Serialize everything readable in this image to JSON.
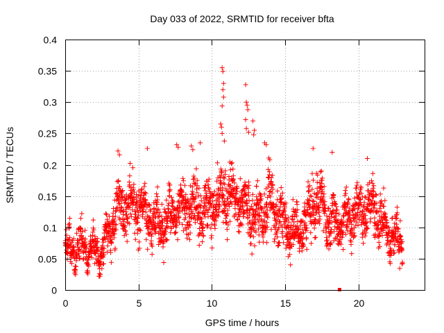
{
  "chart_data": {
    "type": "scatter",
    "title": "Day 033 of 2022, SRMTID for receiver bfta",
    "xlabel": "GPS time / hours",
    "ylabel": "SRMTID / TECUs",
    "xlim": [
      0,
      24.5
    ],
    "ylim": [
      0,
      0.4
    ],
    "xticks": [
      0,
      5,
      10,
      15,
      20
    ],
    "xtick_labels": [
      "0",
      "5",
      "10",
      "15",
      "20"
    ],
    "yticks": [
      0,
      0.05,
      0.1,
      0.15,
      0.2,
      0.25,
      0.3,
      0.35,
      0.4
    ],
    "ytick_labels": [
      "0",
      "0.05",
      "0.1",
      "0.15",
      "0.2",
      "0.25",
      "0.3",
      "0.35",
      "0.4"
    ],
    "grid": true,
    "marker": "plus",
    "series_color": "#ff0000",
    "trend_knots": {
      "x": [
        0,
        0.5,
        1,
        1.5,
        2,
        2.5,
        3,
        3.5,
        4,
        5,
        6,
        7,
        8,
        9,
        10,
        11,
        12,
        13,
        14,
        15,
        16,
        17,
        18,
        19,
        20,
        21,
        22,
        23
      ],
      "y": [
        0.065,
        0.065,
        0.07,
        0.065,
        0.06,
        0.065,
        0.09,
        0.125,
        0.13,
        0.135,
        0.105,
        0.115,
        0.13,
        0.125,
        0.135,
        0.155,
        0.14,
        0.115,
        0.14,
        0.1,
        0.09,
        0.15,
        0.11,
        0.11,
        0.125,
        0.135,
        0.09,
        0.07
      ]
    },
    "x_range_observed": [
      0,
      23
    ],
    "spikes": [
      {
        "x": 10.7,
        "y": 0.355
      },
      {
        "x": 10.75,
        "y": 0.349
      },
      {
        "x": 10.8,
        "y": 0.33
      },
      {
        "x": 10.75,
        "y": 0.32
      },
      {
        "x": 10.8,
        "y": 0.308
      },
      {
        "x": 10.7,
        "y": 0.294
      },
      {
        "x": 12.3,
        "y": 0.328
      },
      {
        "x": 12.35,
        "y": 0.3
      },
      {
        "x": 12.4,
        "y": 0.295
      },
      {
        "x": 12.45,
        "y": 0.288
      },
      {
        "x": 12.3,
        "y": 0.272
      },
      {
        "x": 12.35,
        "y": 0.258
      },
      {
        "x": 12.5,
        "y": 0.252
      },
      {
        "x": 10.6,
        "y": 0.265
      },
      {
        "x": 10.65,
        "y": 0.26
      },
      {
        "x": 10.7,
        "y": 0.25
      },
      {
        "x": 10.85,
        "y": 0.238
      },
      {
        "x": 12.8,
        "y": 0.27
      },
      {
        "x": 12.9,
        "y": 0.255
      },
      {
        "x": 12.85,
        "y": 0.248
      },
      {
        "x": 3.6,
        "y": 0.222
      },
      {
        "x": 3.7,
        "y": 0.216
      },
      {
        "x": 5.6,
        "y": 0.226
      },
      {
        "x": 7.6,
        "y": 0.232
      },
      {
        "x": 7.7,
        "y": 0.228
      },
      {
        "x": 8.6,
        "y": 0.23
      },
      {
        "x": 8.7,
        "y": 0.224
      },
      {
        "x": 9.2,
        "y": 0.235
      },
      {
        "x": 13.6,
        "y": 0.235
      },
      {
        "x": 13.7,
        "y": 0.232
      },
      {
        "x": 16.9,
        "y": 0.226
      },
      {
        "x": 18.2,
        "y": 0.22
      },
      {
        "x": 20.6,
        "y": 0.21
      }
    ],
    "outlier_marker": {
      "x": 18.7,
      "y": 0.0
    }
  }
}
